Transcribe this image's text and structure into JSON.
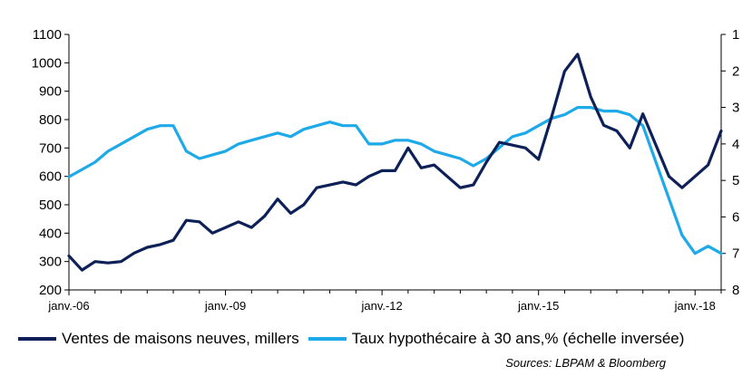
{
  "chart_data": {
    "type": "line",
    "title": "",
    "xlabel": "",
    "ylabel": "",
    "x_tick_labels": [
      "janv.-06",
      "janv.-09",
      "janv.-12",
      "janv.-15",
      "janv.-18"
    ],
    "y_left": {
      "range": [
        200,
        1100
      ],
      "ticks": [
        "1100",
        "1000",
        "900",
        "800",
        "700",
        "600",
        "500",
        "400",
        "300",
        "200"
      ]
    },
    "y_right": {
      "range": [
        1,
        8
      ],
      "inverted": true,
      "ticks": [
        "1",
        "2",
        "3",
        "4",
        "5",
        "6",
        "7",
        "8"
      ]
    },
    "x_range": [
      2006.0,
      2018.5
    ],
    "grid": false,
    "legend_position": "bottom",
    "series": [
      {
        "name": "Ventes de  maisons neuves, millers",
        "axis": "left",
        "color": "#0d2158",
        "x": [
          2006.0,
          2006.25,
          2006.5,
          2006.75,
          2007.0,
          2007.25,
          2007.5,
          2007.75,
          2008.0,
          2008.25,
          2008.5,
          2008.75,
          2009.0,
          2009.25,
          2009.5,
          2009.75,
          2010.0,
          2010.25,
          2010.5,
          2010.75,
          2011.0,
          2011.25,
          2011.5,
          2011.75,
          2012.0,
          2012.25,
          2012.5,
          2012.75,
          2013.0,
          2013.25,
          2013.5,
          2013.75,
          2014.0,
          2014.25,
          2014.5,
          2014.75,
          2015.0,
          2015.25,
          2015.5,
          2015.75,
          2016.0,
          2016.25,
          2016.5,
          2016.75,
          2017.0,
          2017.25,
          2017.5,
          2017.75,
          2018.0,
          2018.25,
          2018.5
        ],
        "y": [
          320,
          270,
          300,
          295,
          300,
          330,
          350,
          360,
          375,
          445,
          440,
          400,
          420,
          440,
          420,
          460,
          520,
          470,
          500,
          560,
          570,
          580,
          570,
          600,
          620,
          620,
          700,
          630,
          640,
          600,
          560,
          570,
          650,
          720,
          710,
          700,
          660,
          810,
          970,
          1030,
          880,
          780,
          760,
          700,
          820,
          710,
          600,
          560,
          600,
          640,
          760
        ]
      },
      {
        "name": "Taux hypothécaire à 30 ans,% (échelle inversée)",
        "axis": "right",
        "color": "#1ea9e8",
        "x": [
          2006.0,
          2006.25,
          2006.5,
          2006.75,
          2007.0,
          2007.25,
          2007.5,
          2007.75,
          2008.0,
          2008.25,
          2008.5,
          2008.75,
          2009.0,
          2009.25,
          2009.5,
          2009.75,
          2010.0,
          2010.25,
          2010.5,
          2010.75,
          2011.0,
          2011.25,
          2011.5,
          2011.75,
          2012.0,
          2012.25,
          2012.5,
          2012.75,
          2013.0,
          2013.25,
          2013.5,
          2013.75,
          2014.0,
          2014.25,
          2014.5,
          2014.75,
          2015.0,
          2015.25,
          2015.5,
          2015.75,
          2016.0,
          2016.25,
          2016.5,
          2016.75,
          2017.0,
          2017.25,
          2017.5,
          2017.75,
          2018.0,
          2018.25,
          2018.5
        ],
        "y": [
          4.9,
          4.7,
          4.5,
          4.2,
          4.0,
          3.8,
          3.6,
          3.5,
          3.5,
          4.2,
          4.4,
          4.3,
          4.2,
          4.0,
          3.9,
          3.8,
          3.7,
          3.8,
          3.6,
          3.5,
          3.4,
          3.5,
          3.5,
          4.0,
          4.0,
          3.9,
          3.9,
          4.0,
          4.2,
          4.3,
          4.4,
          4.6,
          4.4,
          4.1,
          3.8,
          3.7,
          3.5,
          3.3,
          3.2,
          3.0,
          3.0,
          3.1,
          3.1,
          3.2,
          3.5,
          4.5,
          5.5,
          6.5,
          7.0,
          6.8,
          7.0
        ]
      }
    ]
  },
  "legend": {
    "items": [
      {
        "label": "Ventes de  maisons neuves, millers",
        "color": "#0d2158"
      },
      {
        "label": "Taux hypothécaire à 30 ans,% (échelle inversée)",
        "color": "#1ea9e8"
      }
    ]
  },
  "source": "Sources: LBPAM & Bloomberg"
}
